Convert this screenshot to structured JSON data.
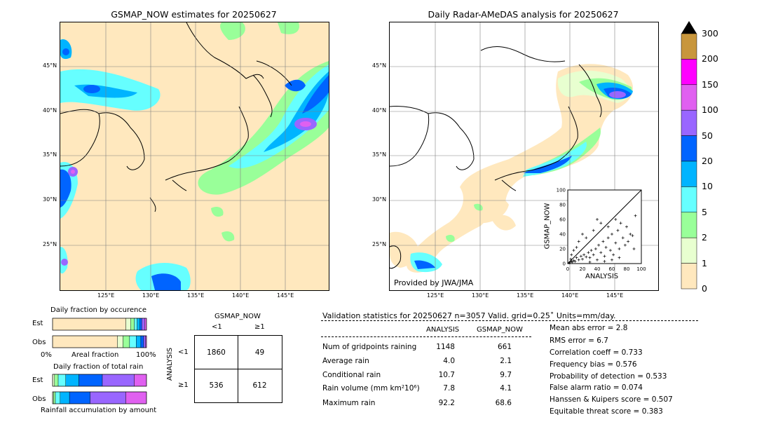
{
  "left_map": {
    "title": "GSMAP_NOW estimates for 20250627",
    "lat_labels": [
      "45°N",
      "40°N",
      "35°N",
      "30°N",
      "25°N"
    ],
    "lon_labels": [
      "125°E",
      "130°E",
      "135°E",
      "140°E",
      "145°E"
    ]
  },
  "right_map": {
    "title": "Daily Radar-AMeDAS analysis for 20250627",
    "lat_labels": [
      "45°N",
      "40°N",
      "35°N",
      "30°N",
      "25°N"
    ],
    "lon_labels": [
      "125°E",
      "130°E",
      "135°E",
      "140°E",
      "145°E"
    ],
    "credit": "Provided by JWA/JMA"
  },
  "colorbar": {
    "labels": [
      "300",
      "200",
      "150",
      "100",
      "50",
      "20",
      "10",
      "5",
      "2",
      "1",
      "0"
    ],
    "colors": [
      "#c8963c",
      "#ff00ff",
      "#e060f0",
      "#9966ff",
      "#0064ff",
      "#00b4ff",
      "#66ffff",
      "#99ff99",
      "#e8ffd0",
      "#ffe8be"
    ]
  },
  "inset": {
    "ylabel": "GSMAP_NOW",
    "xlabel": "ANALYSIS",
    "ticks": [
      "0",
      "20",
      "40",
      "60",
      "80",
      "100"
    ]
  },
  "occurrence": {
    "title": "Daily fraction by occurence",
    "row_labels": [
      "Est",
      "Obs"
    ],
    "axis_left": "0%",
    "axis_mid": "Areal fraction",
    "axis_right": "100%"
  },
  "total_rain": {
    "title": "Daily fraction of total rain",
    "row_labels": [
      "Est",
      "Obs"
    ],
    "axis_label": "Rainfall accumulation by amount"
  },
  "contingency": {
    "title": "GSMAP_NOW",
    "col_labels": [
      "<1",
      "≥1"
    ],
    "row_axis": "ANALYSIS",
    "row_labels": [
      "<1",
      "≥1"
    ],
    "cells": [
      "1860",
      "49",
      "536",
      "612"
    ]
  },
  "validation": {
    "header": "Validation statistics for 20250627  n=3057 Valid. grid=0.25˚ Units=mm/day.",
    "col_analysis": "ANALYSIS",
    "col_gsmap": "GSMAP_NOW",
    "rows": [
      {
        "label": "Num of gridpoints raining",
        "analysis": "1148",
        "gsmap": "661"
      },
      {
        "label": "Average rain",
        "analysis": "4.0",
        "gsmap": "2.1"
      },
      {
        "label": "Conditional rain",
        "analysis": "10.7",
        "gsmap": "9.7"
      },
      {
        "label": "Rain volume (mm km²10⁶)",
        "analysis": "7.8",
        "gsmap": "4.1"
      },
      {
        "label": "Maximum rain",
        "analysis": "92.2",
        "gsmap": "68.6"
      }
    ],
    "scores": [
      "Mean abs error =    2.8",
      "RMS error =    6.7",
      "Correlation coeff =  0.733",
      "Frequency bias =  0.576",
      "Probability of detection =  0.533",
      "False alarm ratio =  0.074",
      "Hanssen & Kuipers score =  0.507",
      "Equitable threat score =  0.383"
    ]
  },
  "chart_data": [
    {
      "type": "heatmap",
      "title": "GSMAP_NOW estimates for 20250627",
      "xlabel": "",
      "ylabel": "",
      "x_ticks": [
        "125°E",
        "130°E",
        "135°E",
        "140°E",
        "145°E"
      ],
      "y_ticks": [
        "45°N",
        "40°N",
        "35°N",
        "30°N",
        "25°N"
      ]
    },
    {
      "type": "heatmap",
      "title": "Daily Radar-AMeDAS analysis for 20250627",
      "x_ticks": [
        "125°E",
        "130°E",
        "135°E",
        "140°E",
        "145°E"
      ],
      "y_ticks": [
        "45°N",
        "40°N",
        "35°N",
        "30°N",
        "25°N"
      ]
    },
    {
      "type": "scatter",
      "xlabel": "ANALYSIS",
      "ylabel": "GSMAP_NOW",
      "xlim": [
        0,
        100
      ],
      "ylim": [
        0,
        100
      ],
      "points": [
        [
          2,
          1
        ],
        [
          3,
          2
        ],
        [
          5,
          3
        ],
        [
          4,
          6
        ],
        [
          6,
          2
        ],
        [
          8,
          4
        ],
        [
          10,
          3
        ],
        [
          12,
          8
        ],
        [
          15,
          5
        ],
        [
          18,
          10
        ],
        [
          20,
          6
        ],
        [
          22,
          12
        ],
        [
          25,
          9
        ],
        [
          28,
          15
        ],
        [
          30,
          8
        ],
        [
          32,
          18
        ],
        [
          35,
          12
        ],
        [
          38,
          20
        ],
        [
          40,
          5
        ],
        [
          42,
          25
        ],
        [
          45,
          15
        ],
        [
          48,
          30
        ],
        [
          50,
          10
        ],
        [
          52,
          22
        ],
        [
          55,
          35
        ],
        [
          58,
          18
        ],
        [
          60,
          40
        ],
        [
          62,
          12
        ],
        [
          65,
          28
        ],
        [
          68,
          45
        ],
        [
          70,
          20
        ],
        [
          72,
          55
        ],
        [
          75,
          35
        ],
        [
          78,
          25
        ],
        [
          80,
          50
        ],
        [
          82,
          30
        ],
        [
          85,
          40
        ],
        [
          88,
          38
        ],
        [
          90,
          20
        ],
        [
          92,
          65
        ],
        [
          15,
          30
        ],
        [
          20,
          40
        ],
        [
          25,
          35
        ],
        [
          35,
          45
        ],
        [
          45,
          55
        ],
        [
          8,
          18
        ],
        [
          12,
          22
        ],
        [
          5,
          12
        ],
        [
          30,
          2
        ],
        [
          50,
          3
        ],
        [
          60,
          5
        ],
        [
          70,
          8
        ],
        [
          40,
          60
        ],
        [
          55,
          50
        ],
        [
          65,
          60
        ]
      ]
    },
    {
      "type": "bar",
      "title": "Daily fraction by occurence",
      "series": [
        {
          "name": "Est",
          "values": [
            0.78,
            0.05,
            0.04,
            0.03,
            0.03,
            0.02,
            0.03,
            0.02
          ]
        },
        {
          "name": "Obs",
          "values": [
            0.69,
            0.06,
            0.07,
            0.07,
            0.05,
            0.03,
            0.02,
            0.01
          ]
        }
      ]
    },
    {
      "type": "bar",
      "title": "Daily fraction of total rain",
      "series": [
        {
          "name": "Est",
          "values": [
            0.02,
            0.04,
            0.08,
            0.14,
            0.25,
            0.34,
            0.13
          ]
        },
        {
          "name": "Obs",
          "values": [
            0.01,
            0.02,
            0.05,
            0.1,
            0.22,
            0.38,
            0.22
          ]
        }
      ]
    }
  ]
}
